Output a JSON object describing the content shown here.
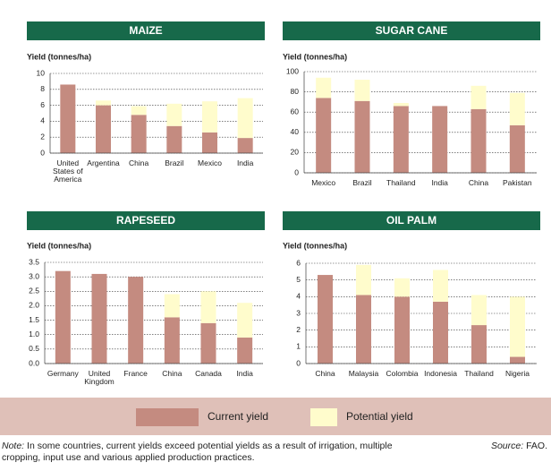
{
  "chart_data": [
    {
      "type": "bar",
      "stacked": true,
      "title": "MAIZE",
      "y_label": "Yield (tonnes/ha)",
      "categories": [
        "United States of America",
        "Argentina",
        "China",
        "Brazil",
        "Mexico",
        "India"
      ],
      "series": [
        {
          "name": "Current yield",
          "color": "#c48b80",
          "values": [
            8.6,
            6.0,
            4.8,
            3.4,
            2.6,
            1.9
          ]
        },
        {
          "name": "Potential yield",
          "color": "#fffccc",
          "values": [
            0,
            0.6,
            1.1,
            2.8,
            3.9,
            5.0
          ]
        }
      ],
      "ylim": [
        0,
        10
      ],
      "yticks": [
        0,
        2,
        4,
        6,
        8,
        10
      ],
      "grid": true
    },
    {
      "type": "bar",
      "stacked": true,
      "title": "SUGAR CANE",
      "y_label": "Yield (tonnes/ha)",
      "categories": [
        "Mexico",
        "Brazil",
        "Thailand",
        "India",
        "China",
        "Pakistan"
      ],
      "series": [
        {
          "name": "Current yield",
          "color": "#c48b80",
          "values": [
            74,
            71,
            66,
            66,
            63,
            47
          ]
        },
        {
          "name": "Potential yield",
          "color": "#fffccc",
          "values": [
            20,
            21,
            3,
            0,
            23,
            32
          ]
        }
      ],
      "ylim": [
        0,
        100
      ],
      "yticks": [
        0,
        20,
        40,
        60,
        80,
        100
      ],
      "grid": true
    },
    {
      "type": "bar",
      "stacked": true,
      "title": "RAPESEED",
      "y_label": "Yield (tonnes/ha)",
      "categories": [
        "Germany",
        "United Kingdom",
        "France",
        "China",
        "Canada",
        "India"
      ],
      "series": [
        {
          "name": "Current yield",
          "color": "#c48b80",
          "values": [
            3.2,
            3.1,
            3.0,
            1.6,
            1.4,
            0.9
          ]
        },
        {
          "name": "Potential yield",
          "color": "#fffccc",
          "values": [
            0,
            0,
            0,
            0.8,
            1.1,
            1.2
          ]
        }
      ],
      "ylim": [
        0,
        3.5
      ],
      "yticks": [
        {
          "value": 0,
          "label": "0.0"
        },
        0.5,
        {
          "value": 1,
          "label": "1.0"
        },
        1.5,
        {
          "value": 2,
          "label": "2.0"
        },
        2.5,
        {
          "value": 3,
          "label": "3.0"
        },
        3.5
      ],
      "grid": true
    },
    {
      "type": "bar",
      "stacked": true,
      "title": "OIL PALM",
      "y_label": "Yield (tonnes/ha)",
      "categories": [
        "China",
        "Malaysia",
        "Colombia",
        "Indonesia",
        "Thailand",
        "Nigeria"
      ],
      "series": [
        {
          "name": "Current yield",
          "color": "#c48b80",
          "values": [
            5.3,
            4.1,
            4.0,
            3.7,
            2.3,
            0.4
          ]
        },
        {
          "name": "Potential yield",
          "color": "#fffccc",
          "values": [
            0,
            1.8,
            1.1,
            1.9,
            1.8,
            3.6
          ]
        }
      ],
      "ylim": [
        0,
        6
      ],
      "yticks": [
        0,
        1,
        2,
        3,
        4,
        5,
        6
      ],
      "grid": true
    }
  ],
  "note_label": "Note:",
  "note": "In some countries, current yields exceed potential yields as a result of irrigation, multiple cropping, input use and various applied production practices.",
  "source_label": "Source:",
  "source": "FAO."
}
